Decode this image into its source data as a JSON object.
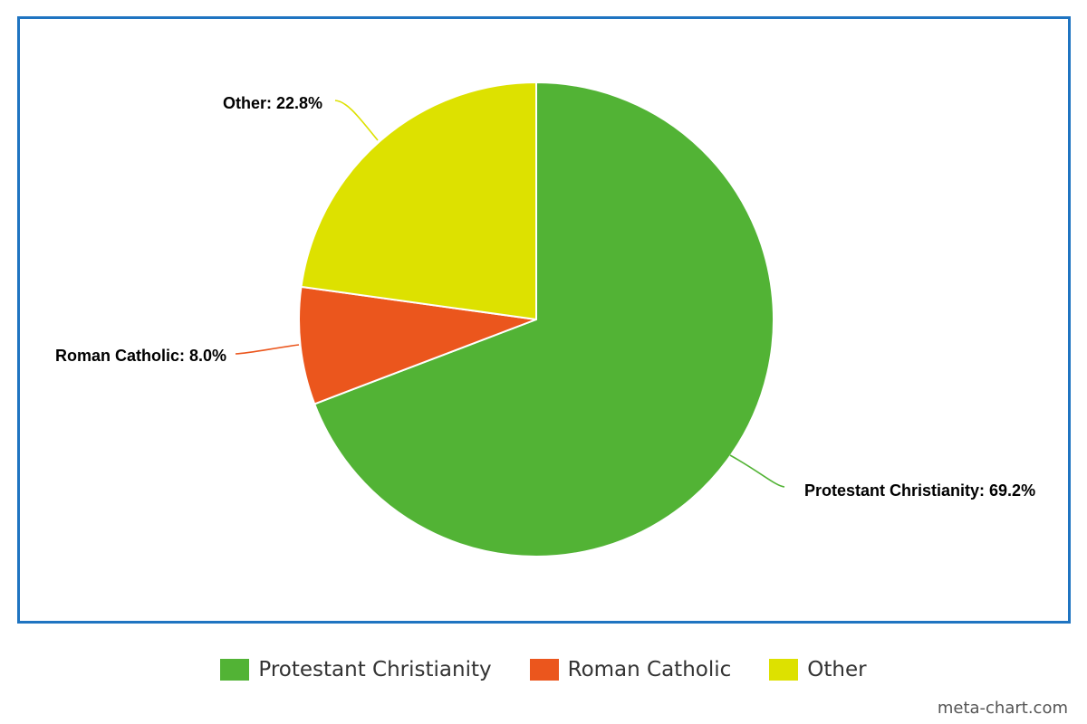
{
  "chart_data": {
    "type": "pie",
    "title": "",
    "legend_position": "bottom",
    "slices": [
      {
        "name": "Protestant Christianity",
        "value": 69.2,
        "label": "Protestant Christianity: 69.2%",
        "color": "#52b335"
      },
      {
        "name": "Roman Catholic",
        "value": 8.0,
        "label": "Roman Catholic: 8.0%",
        "color": "#eb561d"
      },
      {
        "name": "Other",
        "value": 22.8,
        "label": "Other: 22.8%",
        "color": "#dde100"
      }
    ]
  },
  "legend": {
    "items": [
      {
        "label": "Protestant Christianity",
        "color": "#52b335"
      },
      {
        "label": "Roman Catholic",
        "color": "#eb561d"
      },
      {
        "label": "Other",
        "color": "#dde100"
      }
    ]
  },
  "watermark": "meta-chart.com"
}
